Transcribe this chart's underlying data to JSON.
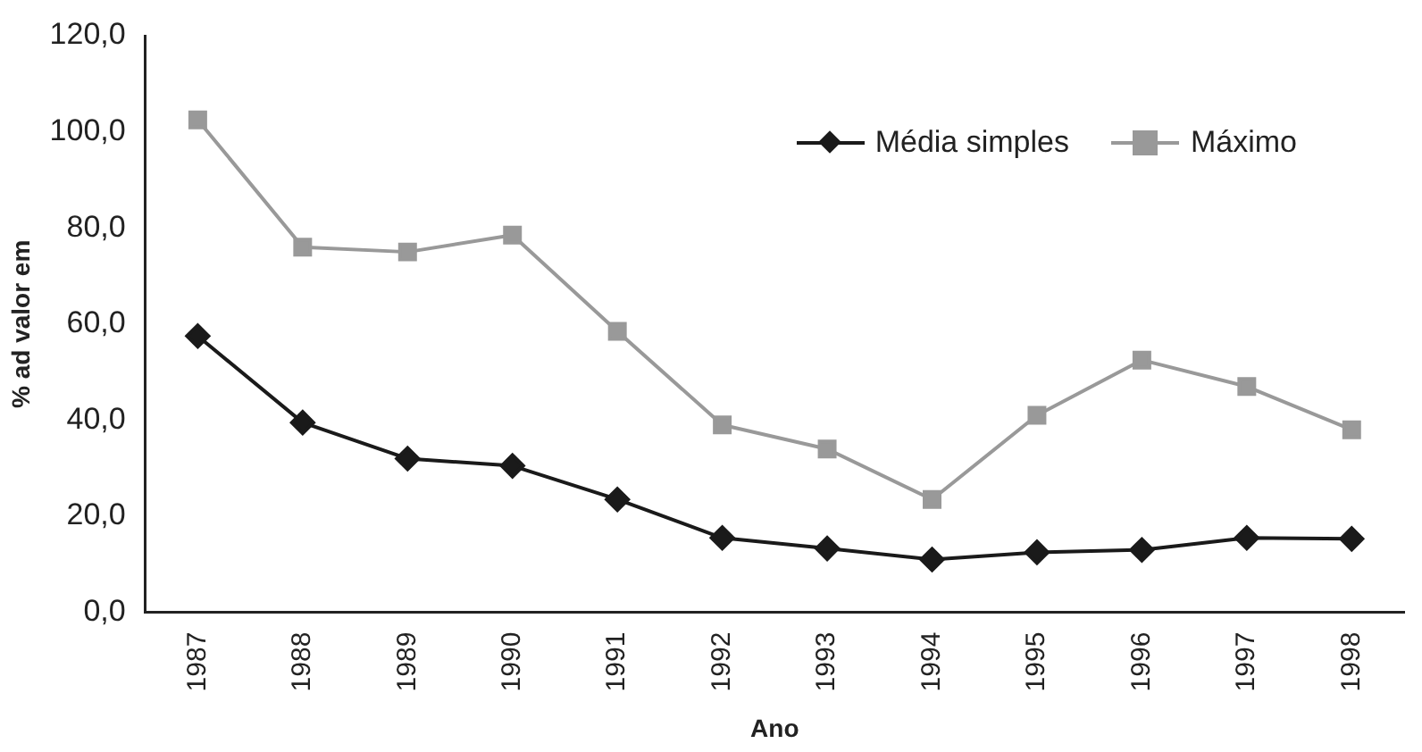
{
  "chart_data": {
    "type": "line",
    "xlabel": "Ano",
    "ylabel": "% ad valor em",
    "categories": [
      "1987",
      "1988",
      "1989",
      "1990",
      "1991",
      "1992",
      "1993",
      "1994",
      "1995",
      "1996",
      "1997",
      "1998"
    ],
    "series": [
      {
        "name": "Média simples",
        "color": "#1a1a1a",
        "marker": "diamond",
        "values": [
          57.5,
          39.5,
          32,
          30.5,
          23.5,
          15.5,
          13.3,
          11,
          12.5,
          13,
          15.5,
          15.3
        ]
      },
      {
        "name": "Máximo",
        "color": "#999999",
        "marker": "square",
        "values": [
          102.5,
          76,
          75,
          78.5,
          58.5,
          39,
          34,
          23.5,
          41,
          52.5,
          47,
          38
        ]
      }
    ],
    "ylim": [
      0,
      120
    ],
    "yticks": [
      {
        "value": 0,
        "label": "0,0"
      },
      {
        "value": 20,
        "label": "20,0"
      },
      {
        "value": 40,
        "label": "40,0"
      },
      {
        "value": 60,
        "label": "60,0"
      },
      {
        "value": 80,
        "label": "80,0"
      },
      {
        "value": 100,
        "label": "100,0"
      },
      {
        "value": 120,
        "label": "120,0"
      }
    ],
    "grid": false,
    "legend": "top right",
    "line_style": "solid"
  }
}
